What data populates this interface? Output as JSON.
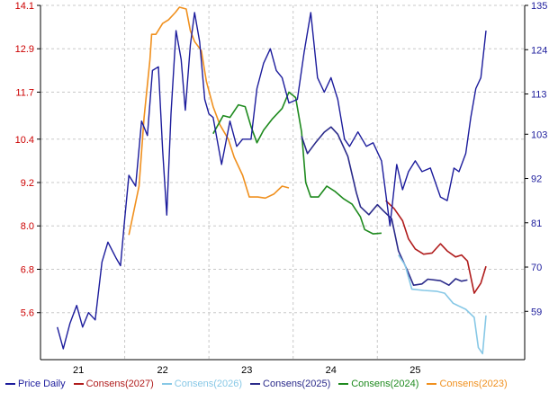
{
  "chart_data": {
    "type": "line",
    "x_ticks": [
      {
        "label": "21",
        "year": 21
      },
      {
        "label": "22",
        "year": 22
      },
      {
        "label": "23",
        "year": 23
      },
      {
        "label": "24",
        "year": 24
      },
      {
        "label": "25",
        "year": 25
      }
    ],
    "x_range": [
      20.55,
      26.3
    ],
    "left_axis": {
      "ticks": [
        "14.1",
        "12.9",
        "11.7",
        "10.4",
        "9.2",
        "8.0",
        "6.8",
        "5.6"
      ],
      "range": [
        4.3,
        14.1
      ],
      "color": "#cc0000"
    },
    "right_axis": {
      "ticks": [
        "135",
        "124",
        "113",
        "103",
        "92",
        "81",
        "70",
        "59"
      ],
      "range": [
        47,
        135
      ],
      "color": "#1c1c9c"
    },
    "grid": true,
    "legend": [
      {
        "name": "Price Daily",
        "color": "#1c1c9c"
      },
      {
        "name": "Consens(2027)",
        "color": "#b01c1c"
      },
      {
        "name": "Consens(2026)",
        "color": "#87c8e6"
      },
      {
        "name": "Consens(2025)",
        "color": "#2a2a8a"
      },
      {
        "name": "Consens(2024)",
        "color": "#1e8a1e"
      },
      {
        "name": "Consens(2023)",
        "color": "#f0901e"
      }
    ],
    "series": [
      {
        "name": "Consens(2023)",
        "axis": "left",
        "color": "#f0901e",
        "points": [
          [
            21.6,
            7.75
          ],
          [
            21.72,
            9.1
          ],
          [
            21.78,
            11.0
          ],
          [
            21.85,
            12.6
          ],
          [
            21.87,
            13.3
          ],
          [
            21.92,
            13.3
          ],
          [
            22.0,
            13.6
          ],
          [
            22.07,
            13.7
          ],
          [
            22.15,
            13.9
          ],
          [
            22.2,
            14.05
          ],
          [
            22.28,
            14.0
          ],
          [
            22.33,
            13.4
          ],
          [
            22.38,
            13.1
          ],
          [
            22.46,
            12.85
          ],
          [
            22.52,
            12.0
          ],
          [
            22.6,
            11.3
          ],
          [
            22.68,
            10.8
          ],
          [
            22.78,
            10.4
          ],
          [
            22.85,
            9.9
          ],
          [
            22.95,
            9.4
          ],
          [
            23.03,
            8.8
          ],
          [
            23.13,
            8.8
          ],
          [
            23.22,
            8.77
          ],
          [
            23.32,
            8.88
          ],
          [
            23.42,
            9.1
          ],
          [
            23.5,
            9.05
          ]
        ]
      },
      {
        "name": "Consens(2024)",
        "axis": "left",
        "color": "#1e8a1e",
        "points": [
          [
            22.6,
            10.55
          ],
          [
            22.72,
            11.05
          ],
          [
            22.8,
            11.0
          ],
          [
            22.9,
            11.35
          ],
          [
            22.98,
            11.3
          ],
          [
            23.05,
            10.75
          ],
          [
            23.12,
            10.3
          ],
          [
            23.2,
            10.65
          ],
          [
            23.3,
            10.95
          ],
          [
            23.42,
            11.25
          ],
          [
            23.5,
            11.7
          ],
          [
            23.58,
            11.55
          ],
          [
            23.65,
            10.6
          ],
          [
            23.7,
            9.2
          ],
          [
            23.76,
            8.8
          ],
          [
            23.85,
            8.8
          ],
          [
            23.95,
            9.1
          ],
          [
            24.05,
            8.95
          ],
          [
            24.15,
            8.75
          ],
          [
            24.25,
            8.6
          ],
          [
            24.35,
            8.25
          ],
          [
            24.4,
            7.9
          ],
          [
            24.5,
            7.78
          ],
          [
            24.6,
            7.8
          ]
        ]
      },
      {
        "name": "Consens(2025)",
        "axis": "right",
        "color": "#2a2a8a",
        "points": [
          [
            23.65,
            102.5
          ],
          [
            23.72,
            98.2
          ],
          [
            23.82,
            101.0
          ],
          [
            23.92,
            103.5
          ],
          [
            24.0,
            104.8
          ],
          [
            24.08,
            103.0
          ],
          [
            24.2,
            97.5
          ],
          [
            24.3,
            88.5
          ],
          [
            24.35,
            85.0
          ],
          [
            24.45,
            83.0
          ],
          [
            24.55,
            85.5
          ],
          [
            24.62,
            84.0
          ],
          [
            24.72,
            82.0
          ],
          [
            24.8,
            74.0
          ],
          [
            24.9,
            69.5
          ],
          [
            24.98,
            65.5
          ],
          [
            25.08,
            65.8
          ],
          [
            25.15,
            67.0
          ],
          [
            25.3,
            66.6
          ],
          [
            25.4,
            65.5
          ],
          [
            25.48,
            67.1
          ],
          [
            25.55,
            66.5
          ],
          [
            25.62,
            66.8
          ]
        ]
      },
      {
        "name": "Consens(2027)",
        "axis": "right",
        "color": "#b01c1c",
        "points": [
          [
            24.65,
            86.5
          ],
          [
            24.75,
            84.5
          ],
          [
            24.85,
            81.5
          ],
          [
            24.92,
            77.0
          ],
          [
            25.0,
            74.5
          ],
          [
            25.1,
            73.2
          ],
          [
            25.2,
            73.5
          ],
          [
            25.3,
            75.8
          ],
          [
            25.38,
            74.0
          ],
          [
            25.48,
            72.5
          ],
          [
            25.55,
            73.0
          ],
          [
            25.62,
            71.5
          ],
          [
            25.7,
            63.5
          ],
          [
            25.78,
            66.0
          ],
          [
            25.84,
            70.2
          ]
        ]
      },
      {
        "name": "Consens(2026)",
        "axis": "right",
        "color": "#87c8e6",
        "points": [
          [
            24.8,
            73.0
          ],
          [
            24.88,
            70.5
          ],
          [
            24.96,
            64.5
          ],
          [
            25.1,
            64.2
          ],
          [
            25.25,
            64.0
          ],
          [
            25.35,
            63.5
          ],
          [
            25.45,
            61.0
          ],
          [
            25.6,
            59.5
          ],
          [
            25.7,
            57.5
          ],
          [
            25.75,
            50.0
          ],
          [
            25.8,
            48.5
          ],
          [
            25.84,
            58.0
          ]
        ]
      },
      {
        "name": "Price Daily",
        "axis": "left",
        "color": "#1c1c9c",
        "points": [
          [
            20.75,
            5.2
          ],
          [
            20.82,
            4.6
          ],
          [
            20.9,
            5.3
          ],
          [
            20.98,
            5.8
          ],
          [
            21.05,
            5.2
          ],
          [
            21.12,
            5.6
          ],
          [
            21.2,
            5.4
          ],
          [
            21.28,
            7.0
          ],
          [
            21.35,
            7.55
          ],
          [
            21.45,
            7.1
          ],
          [
            21.5,
            6.9
          ],
          [
            21.55,
            8.2
          ],
          [
            21.6,
            9.4
          ],
          [
            21.68,
            9.1
          ],
          [
            21.75,
            10.9
          ],
          [
            21.82,
            10.5
          ],
          [
            21.88,
            12.3
          ],
          [
            21.95,
            12.4
          ],
          [
            22.0,
            10.1
          ],
          [
            22.05,
            8.3
          ],
          [
            22.1,
            11.1
          ],
          [
            22.16,
            13.4
          ],
          [
            22.22,
            12.6
          ],
          [
            22.27,
            11.2
          ],
          [
            22.33,
            13.0
          ],
          [
            22.38,
            13.9
          ],
          [
            22.44,
            13.1
          ],
          [
            22.5,
            11.5
          ],
          [
            22.55,
            11.1
          ],
          [
            22.6,
            11.0
          ],
          [
            22.7,
            9.7
          ],
          [
            22.8,
            10.9
          ],
          [
            22.88,
            10.2
          ],
          [
            22.95,
            10.4
          ],
          [
            23.05,
            10.4
          ],
          [
            23.12,
            11.8
          ],
          [
            23.2,
            12.5
          ],
          [
            23.28,
            12.9
          ],
          [
            23.35,
            12.3
          ],
          [
            23.42,
            12.1
          ],
          [
            23.5,
            11.4
          ],
          [
            23.6,
            11.5
          ],
          [
            23.68,
            12.8
          ],
          [
            23.76,
            13.9
          ],
          [
            23.84,
            12.1
          ],
          [
            23.92,
            11.7
          ],
          [
            24.0,
            12.1
          ],
          [
            24.08,
            11.5
          ],
          [
            24.16,
            10.4
          ],
          [
            24.22,
            10.2
          ],
          [
            24.32,
            10.6
          ],
          [
            24.42,
            10.2
          ],
          [
            24.5,
            10.3
          ],
          [
            24.6,
            9.8
          ],
          [
            24.7,
            8.0
          ],
          [
            24.78,
            9.7
          ],
          [
            24.85,
            9.0
          ],
          [
            24.92,
            9.5
          ],
          [
            25.0,
            9.8
          ],
          [
            25.08,
            9.5
          ],
          [
            25.18,
            9.6
          ],
          [
            25.3,
            8.8
          ],
          [
            25.38,
            8.7
          ],
          [
            25.46,
            9.6
          ],
          [
            25.52,
            9.5
          ],
          [
            25.6,
            10.0
          ],
          [
            25.66,
            11.0
          ],
          [
            25.72,
            11.8
          ],
          [
            25.78,
            12.1
          ],
          [
            25.84,
            13.4
          ]
        ]
      }
    ]
  }
}
